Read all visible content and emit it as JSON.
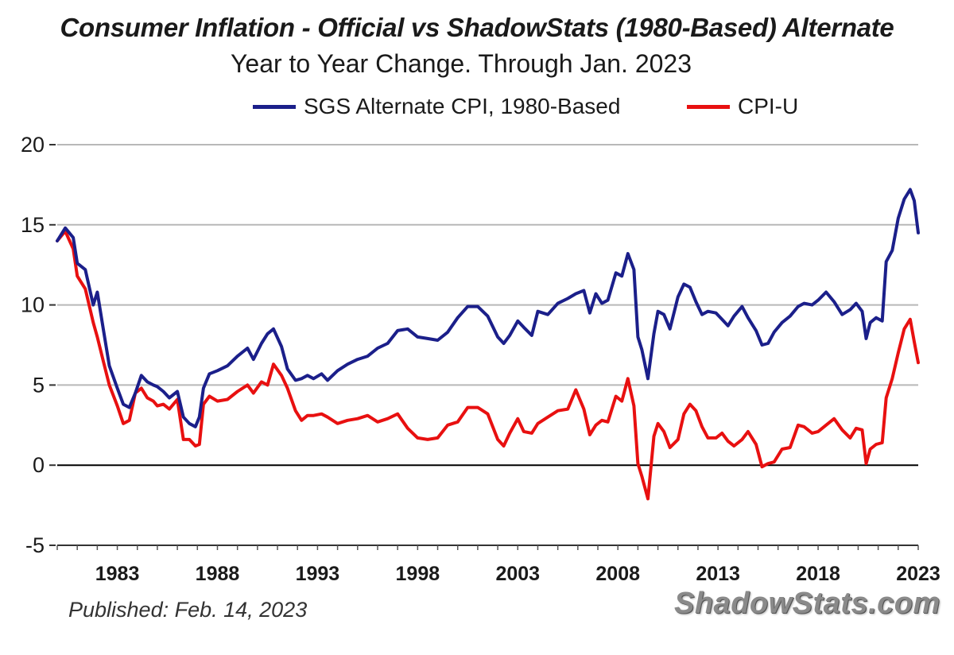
{
  "chart_data": {
    "type": "line",
    "title": "Consumer Inflation - Official vs ShadowStats (1980-Based) Alternate",
    "subtitle": "Year to Year Change. Through Jan. 2023",
    "xlabel": "",
    "ylabel": "",
    "xlim": [
      1980,
      2023
    ],
    "ylim": [
      -5,
      20
    ],
    "y_ticks": [
      -5,
      0,
      5,
      10,
      15,
      20
    ],
    "x_ticks": [
      1983,
      1988,
      1993,
      1998,
      2003,
      2008,
      2013,
      2018,
      2023
    ],
    "grid": "horizontal",
    "legend_position": "top-center",
    "series": [
      {
        "name": "SGS Alternate CPI, 1980-Based",
        "color": "#1b1f8a",
        "x": [
          1980.0,
          1980.4,
          1980.8,
          1981.0,
          1981.4,
          1981.8,
          1982.0,
          1982.3,
          1982.6,
          1983.0,
          1983.3,
          1983.6,
          1983.9,
          1984.2,
          1984.5,
          1984.8,
          1985.0,
          1985.3,
          1985.6,
          1986.0,
          1986.3,
          1986.6,
          1986.9,
          1987.1,
          1987.3,
          1987.6,
          1988.0,
          1988.5,
          1989.0,
          1989.5,
          1989.8,
          1990.2,
          1990.5,
          1990.8,
          1991.2,
          1991.5,
          1991.9,
          1992.2,
          1992.5,
          1992.8,
          1993.2,
          1993.5,
          1994.0,
          1994.5,
          1995.0,
          1995.5,
          1996.0,
          1996.5,
          1997.0,
          1997.5,
          1998.0,
          1998.5,
          1999.0,
          1999.5,
          2000.0,
          2000.5,
          2001.0,
          2001.5,
          2002.0,
          2002.3,
          2002.6,
          2003.0,
          2003.3,
          2003.7,
          2004.0,
          2004.5,
          2005.0,
          2005.5,
          2005.9,
          2006.3,
          2006.6,
          2006.9,
          2007.2,
          2007.5,
          2007.9,
          2008.2,
          2008.5,
          2008.8,
          2009.0,
          2009.2,
          2009.5,
          2009.8,
          2010.0,
          2010.3,
          2010.6,
          2011.0,
          2011.3,
          2011.6,
          2011.9,
          2012.2,
          2012.5,
          2012.9,
          2013.2,
          2013.5,
          2013.8,
          2014.2,
          2014.5,
          2014.9,
          2015.2,
          2015.5,
          2015.8,
          2016.2,
          2016.6,
          2017.0,
          2017.3,
          2017.7,
          2018.0,
          2018.4,
          2018.8,
          2019.2,
          2019.6,
          2019.9,
          2020.2,
          2020.4,
          2020.6,
          2020.9,
          2021.2,
          2021.4,
          2021.7,
          2022.0,
          2022.3,
          2022.6,
          2022.8,
          2023.0
        ],
        "y": [
          14.0,
          14.8,
          14.2,
          12.6,
          12.2,
          10.0,
          10.8,
          8.5,
          6.2,
          4.8,
          3.8,
          3.6,
          4.5,
          5.6,
          5.2,
          5.0,
          4.9,
          4.6,
          4.2,
          4.6,
          3.0,
          2.6,
          2.4,
          3.0,
          4.8,
          5.7,
          5.9,
          6.2,
          6.8,
          7.3,
          6.6,
          7.6,
          8.2,
          8.5,
          7.4,
          6.0,
          5.3,
          5.4,
          5.6,
          5.4,
          5.7,
          5.3,
          5.9,
          6.3,
          6.6,
          6.8,
          7.3,
          7.6,
          8.4,
          8.5,
          8.0,
          7.9,
          7.8,
          8.3,
          9.2,
          9.9,
          9.9,
          9.3,
          8.0,
          7.6,
          8.1,
          9.0,
          8.6,
          8.1,
          9.6,
          9.4,
          10.1,
          10.4,
          10.7,
          10.9,
          9.5,
          10.7,
          10.1,
          10.3,
          12.0,
          11.8,
          13.2,
          12.2,
          8.0,
          7.2,
          5.4,
          8.2,
          9.6,
          9.4,
          8.5,
          10.5,
          11.3,
          11.1,
          10.2,
          9.4,
          9.6,
          9.5,
          9.1,
          8.7,
          9.3,
          9.9,
          9.2,
          8.4,
          7.5,
          7.6,
          8.3,
          8.9,
          9.3,
          9.9,
          10.1,
          10.0,
          10.3,
          10.8,
          10.2,
          9.4,
          9.7,
          10.1,
          9.6,
          7.9,
          8.9,
          9.2,
          9.0,
          12.7,
          13.4,
          15.4,
          16.6,
          17.2,
          16.5,
          14.5
        ]
      },
      {
        "name": "CPI-U",
        "color": "#e81010",
        "x": [
          1980.0,
          1980.4,
          1980.8,
          1981.0,
          1981.4,
          1981.8,
          1982.0,
          1982.3,
          1982.6,
          1983.0,
          1983.3,
          1983.6,
          1983.9,
          1984.2,
          1984.5,
          1984.8,
          1985.0,
          1985.3,
          1985.6,
          1986.0,
          1986.3,
          1986.6,
          1986.9,
          1987.1,
          1987.3,
          1987.6,
          1988.0,
          1988.5,
          1989.0,
          1989.5,
          1989.8,
          1990.2,
          1990.5,
          1990.8,
          1991.2,
          1991.5,
          1991.9,
          1992.2,
          1992.5,
          1992.8,
          1993.2,
          1993.5,
          1994.0,
          1994.5,
          1995.0,
          1995.5,
          1996.0,
          1996.5,
          1997.0,
          1997.5,
          1998.0,
          1998.5,
          1999.0,
          1999.5,
          2000.0,
          2000.5,
          2001.0,
          2001.5,
          2002.0,
          2002.3,
          2002.6,
          2003.0,
          2003.3,
          2003.7,
          2004.0,
          2004.5,
          2005.0,
          2005.5,
          2005.9,
          2006.3,
          2006.6,
          2006.9,
          2007.2,
          2007.5,
          2007.9,
          2008.2,
          2008.5,
          2008.8,
          2009.0,
          2009.2,
          2009.5,
          2009.8,
          2010.0,
          2010.3,
          2010.6,
          2011.0,
          2011.3,
          2011.6,
          2011.9,
          2012.2,
          2012.5,
          2012.9,
          2013.2,
          2013.5,
          2013.8,
          2014.2,
          2014.5,
          2014.9,
          2015.2,
          2015.5,
          2015.8,
          2016.2,
          2016.6,
          2017.0,
          2017.3,
          2017.7,
          2018.0,
          2018.4,
          2018.8,
          2019.2,
          2019.6,
          2019.9,
          2020.2,
          2020.4,
          2020.6,
          2020.9,
          2021.2,
          2021.4,
          2021.7,
          2022.0,
          2022.3,
          2022.6,
          2022.8,
          2023.0
        ],
        "y": [
          14.0,
          14.6,
          13.5,
          11.8,
          11.0,
          8.9,
          8.0,
          6.5,
          5.0,
          3.7,
          2.6,
          2.8,
          4.5,
          4.8,
          4.2,
          4.0,
          3.7,
          3.8,
          3.5,
          4.1,
          1.6,
          1.6,
          1.2,
          1.3,
          3.8,
          4.3,
          4.0,
          4.1,
          4.6,
          5.0,
          4.5,
          5.2,
          5.0,
          6.3,
          5.6,
          4.8,
          3.4,
          2.8,
          3.1,
          3.1,
          3.2,
          3.0,
          2.6,
          2.8,
          2.9,
          3.1,
          2.7,
          2.9,
          3.2,
          2.3,
          1.7,
          1.6,
          1.7,
          2.5,
          2.7,
          3.6,
          3.6,
          3.2,
          1.6,
          1.2,
          2.0,
          2.9,
          2.1,
          2.0,
          2.6,
          3.0,
          3.4,
          3.5,
          4.7,
          3.5,
          1.9,
          2.5,
          2.8,
          2.7,
          4.3,
          4.0,
          5.4,
          3.7,
          0.1,
          -0.7,
          -2.1,
          1.8,
          2.6,
          2.1,
          1.1,
          1.6,
          3.2,
          3.8,
          3.4,
          2.4,
          1.7,
          1.7,
          2.0,
          1.5,
          1.2,
          1.6,
          2.1,
          1.3,
          -0.1,
          0.1,
          0.2,
          1.0,
          1.1,
          2.5,
          2.4,
          2.0,
          2.1,
          2.5,
          2.9,
          2.2,
          1.7,
          2.3,
          2.2,
          0.1,
          1.0,
          1.3,
          1.4,
          4.2,
          5.4,
          7.0,
          8.5,
          9.1,
          7.7,
          6.4
        ]
      }
    ]
  },
  "legend": {
    "sgs_label": "SGS Alternate CPI, 1980-Based",
    "cpi_label": "CPI-U"
  },
  "footer": {
    "published": "Published: Feb. 14, 2023",
    "brand": "ShadowStats.com"
  }
}
